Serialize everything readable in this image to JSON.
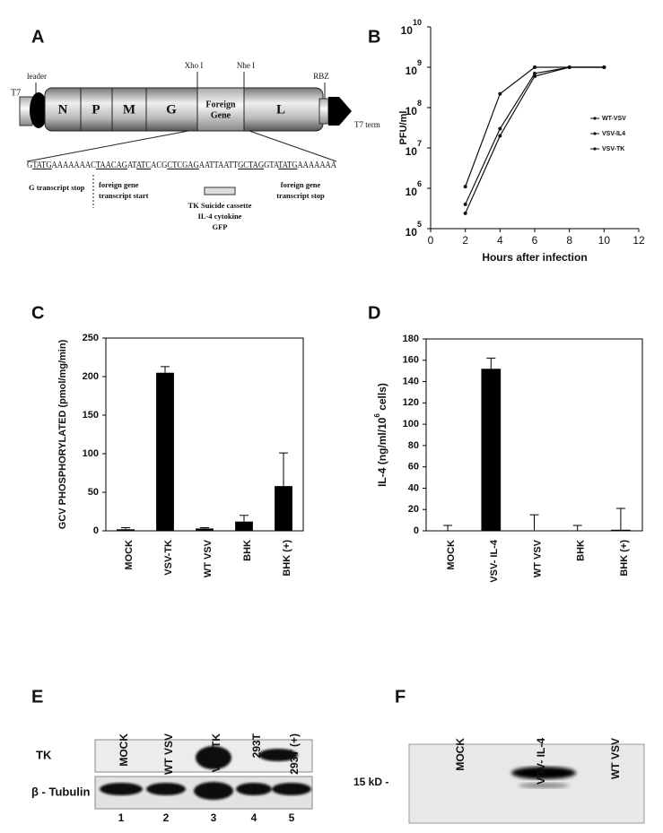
{
  "panels": {
    "a": "A",
    "b": "B",
    "c": "C",
    "d": "D",
    "e": "E",
    "f": "F"
  },
  "diagram": {
    "t7": "T7",
    "leader": "leader",
    "genes": [
      "N",
      "P",
      "M",
      "G"
    ],
    "foreign": [
      "Foreign",
      "Gene"
    ],
    "l": "L",
    "xho": "Xho I",
    "nhe": "Nhe I",
    "rbz": "RBZ",
    "t7term": "T7 term",
    "sequence": [
      {
        "text": "G"
      },
      {
        "text": "TATG",
        "u": true
      },
      {
        "text": "AAAAAAA"
      },
      {
        "text": "C"
      },
      {
        "text": "TAACAG",
        "u": true
      },
      {
        "text": "AT"
      },
      {
        "text": "ATC",
        "u": true
      },
      {
        "text": "ACG"
      },
      {
        "text": "CTCGAG",
        "u": true
      },
      {
        "text": "AATTAATT"
      },
      {
        "text": "GCTAG",
        "u": true
      },
      {
        "text": "GTA"
      },
      {
        "text": "TATG",
        "u": true
      },
      {
        "text": "AAAAAAA"
      }
    ],
    "g_stop": "G transcript stop",
    "fg_start": [
      "foreign gene",
      "transcript start"
    ],
    "cassette": [
      "TK Suicide cassette",
      "IL-4 cytokine",
      "GFP"
    ],
    "fg_stop": [
      "foreign gene",
      "transcript stop"
    ]
  },
  "chart_data": [
    {
      "type": "line",
      "xlabel": "Hours after infection",
      "ylabel": "PFU/ml",
      "log_y": true,
      "x": [
        2,
        4,
        6,
        8,
        10
      ],
      "xlim": [
        0,
        12
      ],
      "xticks": [
        0,
        2,
        4,
        6,
        8,
        10,
        12
      ],
      "ylim": [
        100000,
        10000000000
      ],
      "yticks": [
        {
          "value": 100000,
          "label": "10",
          "sup": "5"
        },
        {
          "value": 1000000,
          "label": "10",
          "sup": "6"
        },
        {
          "value": 10000000,
          "label": "10",
          "sup": "7"
        },
        {
          "value": 100000000,
          "label": "10",
          "sup": "8"
        },
        {
          "value": 1000000000,
          "label": "10",
          "sup": "9"
        },
        {
          "value": 10000000000,
          "label": "10",
          "sup": "10"
        }
      ],
      "series": [
        {
          "name": "WT-VSV",
          "color": "#111111",
          "values": [
            1100000,
            220000000,
            1000000000,
            1000000000,
            1000000000
          ]
        },
        {
          "name": "VSV-IL4",
          "color": "#111111",
          "values": [
            400000,
            30000000,
            700000000,
            1000000000,
            1000000000
          ]
        },
        {
          "name": "VSV-TK",
          "color": "#111111",
          "values": [
            240000,
            20000000,
            600000000,
            1000000000,
            1000000000
          ]
        }
      ]
    },
    {
      "type": "bar",
      "ylabel": "GCV PHOSPHORYLATED (pmol/mg/min)",
      "color": "#000000",
      "categories": [
        "MOCK",
        "VSV-TK",
        "WT VSV",
        "BHK",
        "BHK (+)"
      ],
      "values": [
        2,
        205,
        3,
        12,
        58
      ],
      "errors": [
        2,
        8,
        1,
        8,
        43
      ],
      "ylim": [
        0,
        250
      ],
      "yticks": [
        0,
        50,
        100,
        150,
        200,
        250
      ]
    },
    {
      "type": "bar",
      "ylabel": {
        "text": "IL-4 (ng/ml/10",
        "sup": "6",
        "tail": " cells)"
      },
      "color": "#000000",
      "categories": [
        "MOCK",
        "VSV- IL-4",
        "WT VSV",
        "BHK",
        "BHK (+)"
      ],
      "values": [
        0,
        152,
        0,
        0,
        1
      ],
      "errors": [
        5,
        10,
        15,
        5,
        20
      ],
      "ylim": [
        0,
        180
      ],
      "yticks": [
        0,
        20,
        40,
        60,
        80,
        100,
        120,
        140,
        160,
        180
      ]
    }
  ],
  "blot_e": {
    "lanes": [
      "MOCK",
      "WT VSV",
      "VSV-TK",
      "293T",
      "293T (+)"
    ],
    "numbers": [
      "1",
      "2",
      "3",
      "4",
      "5"
    ],
    "rows": [
      "TK",
      "β - Tubulin"
    ]
  },
  "blot_f": {
    "lanes": [
      "MOCK",
      "VSV- IL-4",
      "WT VSV"
    ],
    "marker": "15 kD -"
  }
}
